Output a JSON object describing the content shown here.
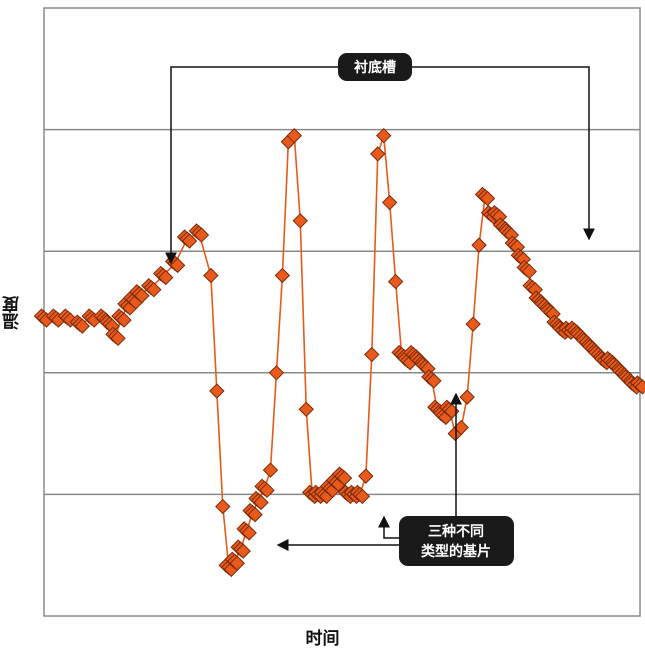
{
  "chart_data": {
    "type": "scatter",
    "title": "",
    "xlabel": "时间",
    "ylabel": "温度",
    "xlim": [
      0,
      100
    ],
    "ylim": [
      0,
      100
    ],
    "grid": true,
    "series": [
      {
        "color": "#e85a1c",
        "edge_color": "#7a2a08",
        "marker": "diamond",
        "x": [
          0,
          2,
          4,
          6,
          8,
          10,
          11,
          12,
          13,
          14,
          15,
          16,
          18,
          20,
          22,
          24,
          26,
          28,
          29,
          30,
          31,
          32,
          33,
          34,
          35,
          36,
          37,
          38,
          39,
          40,
          41,
          42,
          43,
          44,
          45,
          46,
          47,
          48,
          49,
          50,
          51,
          52,
          53,
          54,
          55,
          56,
          57,
          58,
          59,
          60,
          61,
          62,
          63,
          64,
          65,
          66,
          67,
          68,
          69,
          70,
          71,
          72,
          73,
          74,
          75,
          76,
          77,
          78,
          79,
          80,
          81,
          82,
          83,
          84,
          85,
          86,
          87,
          88,
          89,
          90,
          91,
          92,
          93,
          94,
          95,
          96,
          97,
          98,
          99,
          100
        ],
        "y": [
          49,
          49,
          49,
          48,
          49,
          49,
          48,
          46,
          49,
          51,
          52,
          53,
          54,
          56,
          58,
          62,
          63,
          56,
          37,
          18,
          8,
          9,
          11,
          14,
          17,
          19,
          21,
          24,
          40,
          56,
          78,
          79,
          65,
          34,
          20,
          20,
          20,
          21,
          22,
          23,
          20,
          20,
          20,
          23,
          43,
          76,
          79,
          68,
          55,
          43,
          42,
          43,
          42,
          41,
          39,
          34,
          33,
          34,
          30,
          31,
          36,
          48,
          61,
          69,
          66,
          66,
          64,
          63,
          61,
          59,
          57,
          54,
          52,
          51,
          50,
          48,
          47,
          47,
          47,
          46,
          45,
          44,
          43,
          42,
          42,
          41,
          40,
          39,
          38,
          38
        ],
        "filled": [
          true,
          true,
          true,
          true,
          true,
          true,
          true,
          true,
          true,
          true,
          true,
          true,
          true,
          true,
          true,
          true,
          true,
          false,
          false,
          false,
          true,
          true,
          true,
          true,
          true,
          true,
          true,
          false,
          false,
          false,
          false,
          false,
          false,
          false,
          true,
          true,
          true,
          true,
          true,
          true,
          true,
          true,
          true,
          false,
          false,
          false,
          false,
          false,
          false,
          true,
          true,
          true,
          true,
          true,
          true,
          true,
          true,
          true,
          false,
          false,
          false,
          false,
          false,
          true,
          true,
          true,
          true,
          true,
          true,
          true,
          true,
          true,
          true,
          true,
          true,
          true,
          true,
          true,
          true,
          true,
          true,
          true,
          true,
          true,
          true,
          true,
          true,
          true,
          true,
          true
        ]
      }
    ],
    "annotations": [
      {
        "text": "衬底槽",
        "target": "top"
      },
      {
        "text": "三种不同\n类型的基片",
        "target": "bottom"
      }
    ]
  }
}
